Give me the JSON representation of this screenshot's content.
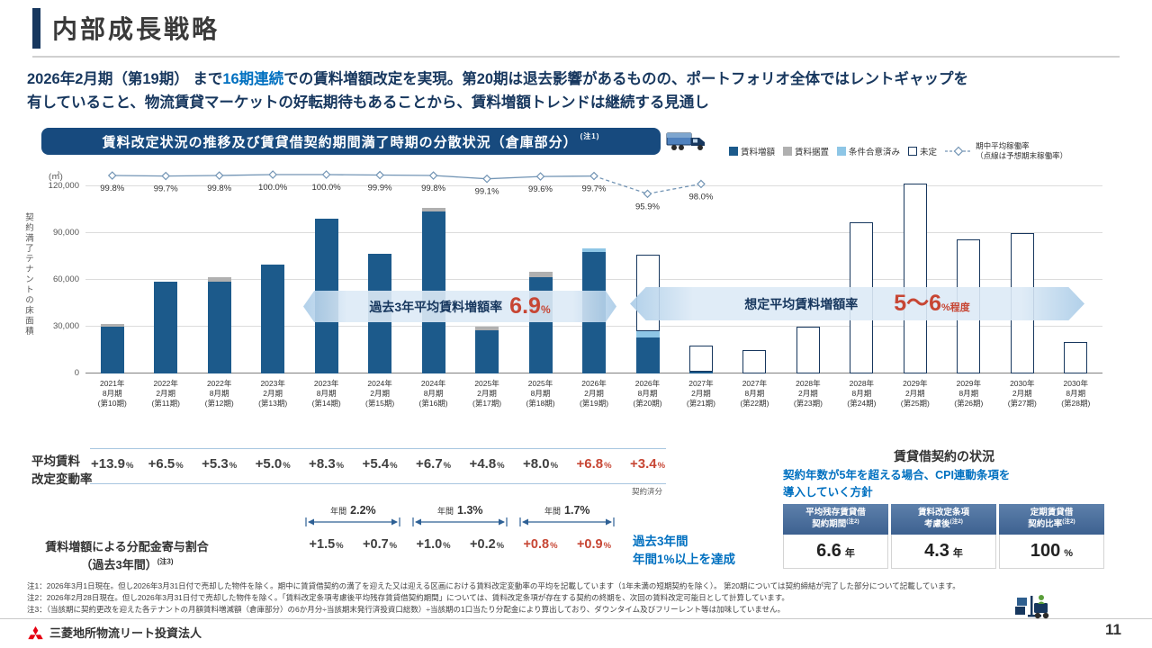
{
  "page": {
    "title": "内部成長戦略",
    "page_number": "11",
    "footer_brand": "三菱地所物流リート投資法人"
  },
  "lead": {
    "l1a": "2026年2月期（第19期） まで",
    "l1b": "16期連続",
    "l1c": "での賃料増額改定を実現。第20期は退去影響があるものの、ポートフォリオ全体ではレントギャップを",
    "l2": "有していること、物流賃貸マーケットの好転期待もあることから、賃料増額トレンドは継続する見通し"
  },
  "chart_header": {
    "title": "賃料改定状況の推移及び賃貸借契約期間満了時期の分散状況（倉庫部分）",
    "note": "(注1)"
  },
  "legend": {
    "items": [
      {
        "label": "賃料増額",
        "color": "#1c5a8b"
      },
      {
        "label": "賃料据置",
        "color": "#b0b0b0"
      },
      {
        "label": "条件合意済み",
        "color": "#8ec6e6"
      },
      {
        "label": "未定",
        "color": "#ffffff",
        "border": true
      }
    ],
    "line_label1": "期中平均稼働率",
    "line_label2": "（点線は予想期末稼働率）"
  },
  "chart_data": {
    "type": "bar",
    "stacked": true,
    "unit_label": "(㎡)",
    "ylabel": "契約満了テナントの床面積",
    "ylim": [
      0,
      120000
    ],
    "yticks": [
      0,
      30000,
      60000,
      90000,
      120000
    ],
    "outline_color": "#17375e",
    "categories": [
      [
        "2021年",
        "8月期",
        "(第10期)"
      ],
      [
        "2022年",
        "2月期",
        "(第11期)"
      ],
      [
        "2022年",
        "8月期",
        "(第12期)"
      ],
      [
        "2023年",
        "2月期",
        "(第13期)"
      ],
      [
        "2023年",
        "8月期",
        "(第14期)"
      ],
      [
        "2024年",
        "2月期",
        "(第15期)"
      ],
      [
        "2024年",
        "8月期",
        "(第16期)"
      ],
      [
        "2025年",
        "2月期",
        "(第17期)"
      ],
      [
        "2025年",
        "8月期",
        "(第18期)"
      ],
      [
        "2026年",
        "2月期",
        "(第19期)"
      ],
      [
        "2026年",
        "8月期",
        "(第20期)"
      ],
      [
        "2027年",
        "2月期",
        "(第21期)"
      ],
      [
        "2027年",
        "8月期",
        "(第22期)"
      ],
      [
        "2028年",
        "2月期",
        "(第23期)"
      ],
      [
        "2028年",
        "8月期",
        "(第24期)"
      ],
      [
        "2029年",
        "2月期",
        "(第25期)"
      ],
      [
        "2029年",
        "8月期",
        "(第26期)"
      ],
      [
        "2030年",
        "2月期",
        "(第27期)"
      ],
      [
        "2030年",
        "8月期",
        "(第28期)"
      ]
    ],
    "series": [
      {
        "key": "increase",
        "name": "賃料増額",
        "color": "#1c5a8b",
        "values": [
          30000,
          59000,
          59000,
          70000,
          99000,
          77000,
          104000,
          28000,
          62000,
          78000,
          23000,
          1000,
          0,
          0,
          0,
          0,
          0,
          0,
          0
        ]
      },
      {
        "key": "flat",
        "name": "賃料据置",
        "color": "#b0b0b0",
        "values": [
          2000,
          0,
          3000,
          0,
          0,
          0,
          2000,
          2000,
          3000,
          0,
          0,
          0,
          0,
          0,
          0,
          0,
          0,
          0,
          0
        ]
      },
      {
        "key": "agreed",
        "name": "条件合意済み",
        "color": "#8ec6e6",
        "values": [
          0,
          0,
          0,
          0,
          0,
          0,
          0,
          0,
          0,
          2000,
          4000,
          0,
          0,
          0,
          0,
          0,
          0,
          0,
          0
        ]
      },
      {
        "key": "undecided",
        "name": "未定",
        "color": "#ffffff",
        "outlined": true,
        "values": [
          0,
          0,
          0,
          0,
          0,
          0,
          0,
          0,
          0,
          0,
          49000,
          17000,
          15000,
          30000,
          97000,
          122000,
          86000,
          90000,
          20000
        ]
      }
    ],
    "occupancy": {
      "name": "期中平均稼働率",
      "note": "（点線は予想期末稼働率）",
      "color": "#7395b5",
      "values": [
        99.8,
        99.7,
        99.8,
        100.0,
        100.0,
        99.9,
        99.8,
        99.1,
        99.6,
        99.7,
        95.9,
        98.0
      ],
      "labels": [
        "99.8%",
        "99.7%",
        "99.8%",
        "100.0%",
        "100.0%",
        "99.9%",
        "99.8%",
        "99.1%",
        "99.6%",
        "99.7%",
        "95.9%",
        "98.0%"
      ],
      "dashed_from_index": 9
    }
  },
  "banners": {
    "past": {
      "label": "過去3年平均賃料増額率",
      "value": "6.9",
      "unit": "%"
    },
    "expected": {
      "label": "想定平均賃料増額率",
      "value": "5〜6",
      "unit": "%程度"
    }
  },
  "rent_revision": {
    "label1": "平均賃料",
    "label2": "改定変動率",
    "unit": "%",
    "values": [
      {
        "v": "+13.9",
        "red": false
      },
      {
        "v": "+6.5",
        "red": false
      },
      {
        "v": "+5.3",
        "red": false
      },
      {
        "v": "+5.0",
        "red": false
      },
      {
        "v": "+8.3",
        "red": false
      },
      {
        "v": "+5.4",
        "red": false
      },
      {
        "v": "+6.7",
        "red": false
      },
      {
        "v": "+4.8",
        "red": false
      },
      {
        "v": "+8.0",
        "red": false
      },
      {
        "v": "+6.8",
        "red": true
      },
      {
        "v": "+3.4",
        "red": true
      }
    ],
    "last_note": "契約済分"
  },
  "contribution": {
    "label1": "賃料増額による分配金寄与割合",
    "label2": "（過去3年間）",
    "note": "(注3)",
    "unit": "%",
    "brackets": [
      {
        "prefix": "年間",
        "value": "2.2%"
      },
      {
        "prefix": "年間",
        "value": "1.3%"
      },
      {
        "prefix": "年間",
        "value": "1.7%"
      }
    ],
    "values": [
      {
        "v": "+1.5",
        "red": false
      },
      {
        "v": "+0.7",
        "red": false
      },
      {
        "v": "+1.0",
        "red": false
      },
      {
        "v": "+0.2",
        "red": false
      },
      {
        "v": "+0.8",
        "red": true
      },
      {
        "v": "+0.9",
        "red": true
      }
    ],
    "achievement1": "過去3年間",
    "achievement2": "年間1%以上を達成"
  },
  "lease_status": {
    "title": "賃貸借契約の状況",
    "policy1": "契約年数が5年を超える場合、CPI連動条項を",
    "policy2": "導入していく方針",
    "columns": [
      {
        "h1": "平均残存賃貸借",
        "h2": "契約期間",
        "note": "(注2)",
        "value": "6.6",
        "unit": "年"
      },
      {
        "h1": "賃料改定条項",
        "h2": "考慮後",
        "note": "(注2)",
        "value": "4.3",
        "unit": "年"
      },
      {
        "h1": "定期賃貸借",
        "h2": "契約比率",
        "note": "(注2)",
        "value": "100",
        "unit": "%"
      }
    ]
  },
  "notes": [
    "注1：2026年3月1日現在。但し2026年3月31日付で売却した物件を除く。期中に賃貸借契約の満了を迎えた又は迎える区画における賃料改定変動率の平均を記載しています（1年未満の短期契約を除く）。 第20期については契約締結が完了した部分について記載しています。",
    "注2：2026年2月28日現在。但し2026年3月31日付で売却した物件を除く。「賃料改定条項考慮後平均残存賃貸借契約期間」については、賃料改定条項が存在する契約の終期を、次回の賃料改定可能日として計算しています。",
    "注3：（当該期に契約更改を迎えた各テナントの月額賃料増減額（倉庫部分）の6か月分÷当該期末発行済投資口総数）÷当該期の1口当たり分配金により算出しており、ダウンタイム及びフリーレント等は加味していません。"
  ]
}
